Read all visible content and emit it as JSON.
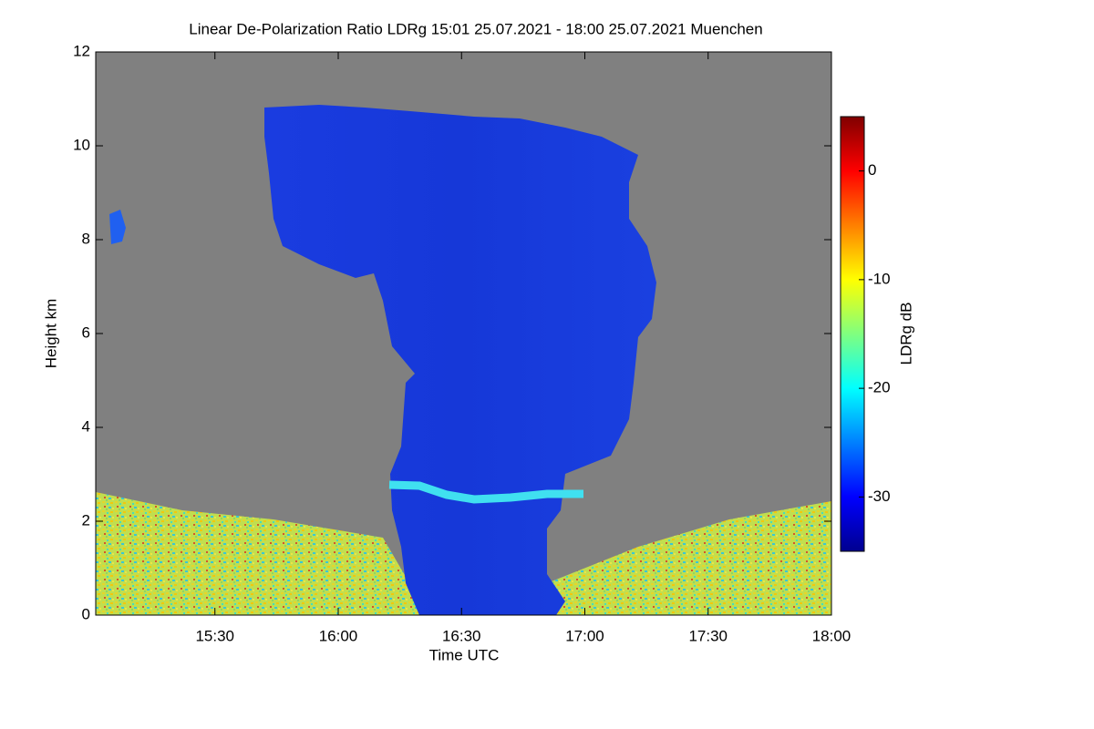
{
  "chart_data": {
    "type": "heatmap",
    "title": "Linear De-Polarization Ratio LDRg   15:01 25.07.2021 - 18:00 25.07.2021 Muenchen",
    "x_label": "Time UTC",
    "y_label": "Height km",
    "colorbar_label": "LDRg dB",
    "xlim": [
      901,
      1080
    ],
    "xticks": [
      {
        "value": 930,
        "label": "15:30"
      },
      {
        "value": 960,
        "label": "16:00"
      },
      {
        "value": 990,
        "label": "16:30"
      },
      {
        "value": 1020,
        "label": "17:00"
      },
      {
        "value": 1050,
        "label": "17:30"
      },
      {
        "value": 1080,
        "label": "18:00"
      }
    ],
    "ylim": [
      0,
      12
    ],
    "yticks": [
      0,
      2,
      4,
      6,
      8,
      10,
      12
    ],
    "clim": [
      -35,
      5
    ],
    "cticks": [
      0,
      -10,
      -20,
      -30
    ],
    "colormap": "jet"
  }
}
